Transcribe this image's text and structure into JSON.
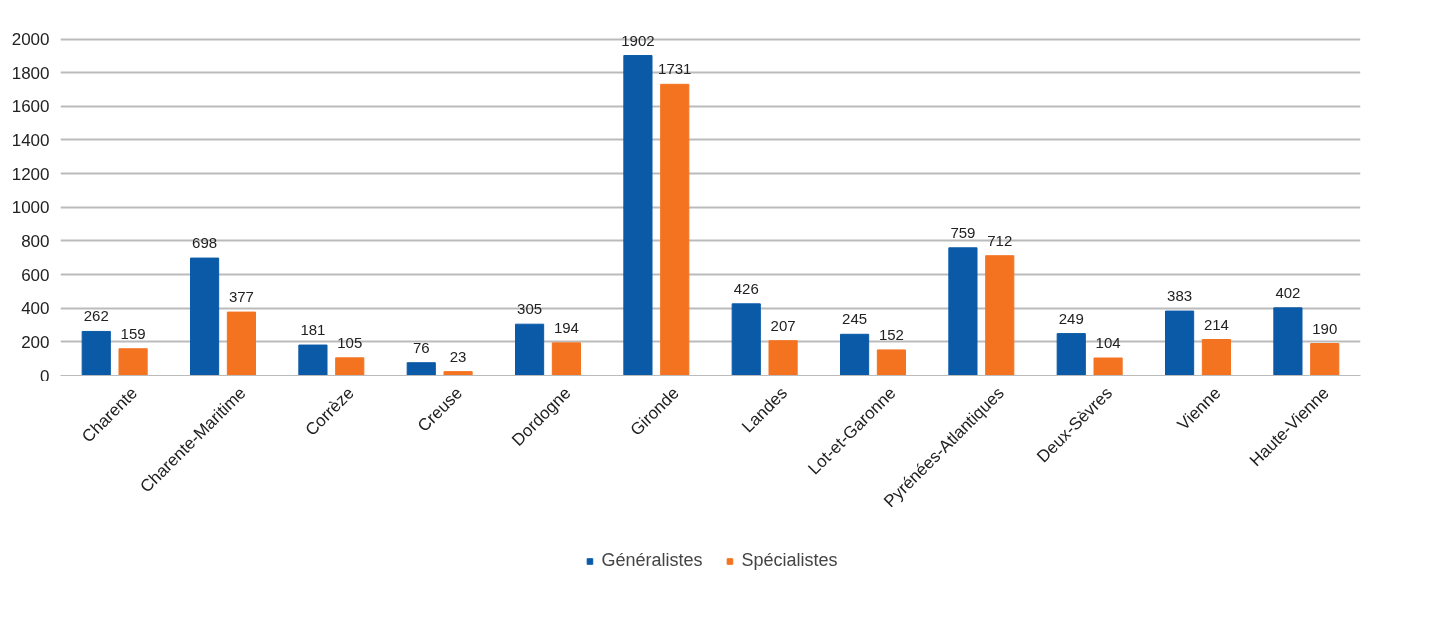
{
  "chart_data": {
    "type": "bar",
    "categories": [
      "Charente",
      "Charente-Maritime",
      "Corrèze",
      "Creuse",
      "Dordogne",
      "Gironde",
      "Landes",
      "Lot-et-Garonne",
      "Pyrénées-Atlantiques",
      "Deux-Sèvres",
      "Vienne",
      "Haute-Vienne"
    ],
    "series": [
      {
        "name": "Généralistes",
        "color": "#0a5aa8",
        "values": [
          262,
          698,
          181,
          76,
          305,
          1902,
          426,
          245,
          759,
          249,
          383,
          402
        ]
      },
      {
        "name": "Spécialistes",
        "color": "#f47321",
        "values": [
          159,
          377,
          105,
          23,
          194,
          1731,
          207,
          152,
          712,
          104,
          214,
          190
        ]
      }
    ],
    "ylim": [
      0,
      2000
    ],
    "yticks": [
      0,
      200,
      400,
      600,
      800,
      1000,
      1200,
      1400,
      1600,
      1800,
      2000
    ],
    "grid": "y",
    "legend": "bottom",
    "data_labels": true
  }
}
